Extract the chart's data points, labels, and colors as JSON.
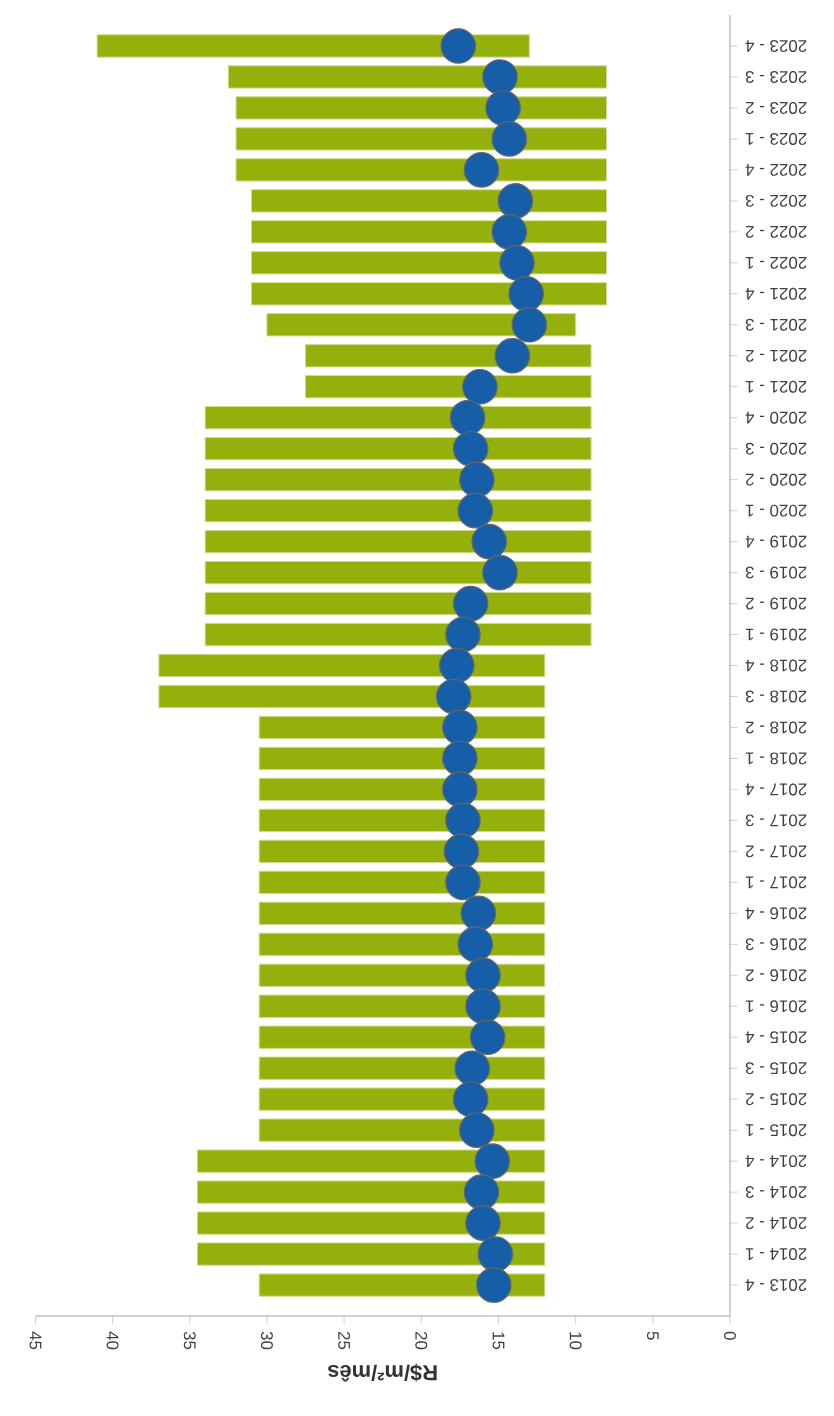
{
  "chart_data": {
    "type": "bar",
    "orientation": "horizontal",
    "xlabel": "R$/m²/mês",
    "categories": [
      "2023 - 4",
      "2023 - 3",
      "2023 - 2",
      "2023 - 1",
      "2022 - 4",
      "2022 - 3",
      "2022 - 2",
      "2022 - 1",
      "2021 - 4",
      "2021 - 3",
      "2021 - 2",
      "2021 - 1",
      "2020 - 4",
      "2020 - 3",
      "2020 - 2",
      "2020 - 1",
      "2019 - 4",
      "2019 - 3",
      "2019 - 2",
      "2019 - 1",
      "2018 - 4",
      "2018 - 3",
      "2018 - 2",
      "2018 - 1",
      "2017 - 4",
      "2017 - 3",
      "2017 - 2",
      "2017 - 1",
      "2016 - 4",
      "2016 - 3",
      "2016 - 2",
      "2016 - 1",
      "2015 - 4",
      "2015 - 3",
      "2015 - 2",
      "2015 - 1",
      "2014 - 4",
      "2014 - 3",
      "2014 - 2",
      "2014 - 1",
      "2013 - 4"
    ],
    "xlim": [
      45,
      0
    ],
    "xticks": [
      0,
      5,
      10,
      15,
      20,
      25,
      30,
      35,
      40,
      45
    ],
    "series": [
      {
        "color": "#94b00a",
        "base": [
          13,
          8,
          8,
          8,
          8,
          8,
          8,
          8,
          8,
          10,
          9,
          9,
          9,
          9,
          9,
          9,
          9,
          9,
          9,
          9,
          12,
          12,
          12,
          12,
          12,
          12,
          12,
          12,
          12,
          12,
          12,
          12,
          12,
          12,
          12,
          12,
          12,
          12,
          12,
          12,
          12
        ],
        "values": [
          28,
          24.5,
          24,
          24,
          24,
          23,
          23,
          23,
          23,
          20,
          18.5,
          18.5,
          25,
          25,
          25,
          25,
          25,
          25,
          25,
          25,
          25,
          25,
          18.5,
          18.5,
          18.5,
          18.5,
          18.5,
          18.5,
          18.5,
          18.5,
          18.5,
          18.5,
          18.5,
          18.5,
          18.5,
          18.5,
          22.5,
          22.5,
          22.5,
          22.5,
          18.5
        ]
      },
      {
        "type": "scatter",
        "color": "#165ea8",
        "marker": "circle",
        "values": [
          17.6,
          14.9,
          14.7,
          14.3,
          16.1,
          13.9,
          14.3,
          13.8,
          13.2,
          13.0,
          14.1,
          16.2,
          17.0,
          16.8,
          16.4,
          16.5,
          15.6,
          14.9,
          16.8,
          17.3,
          17.7,
          17.9,
          17.5,
          17.5,
          17.5,
          17.3,
          17.4,
          17.3,
          16.3,
          16.5,
          16.0,
          16.0,
          15.7,
          16.7,
          16.8,
          16.4,
          15.4,
          16.1,
          16.0,
          15.2,
          15.3
        ]
      }
    ]
  }
}
